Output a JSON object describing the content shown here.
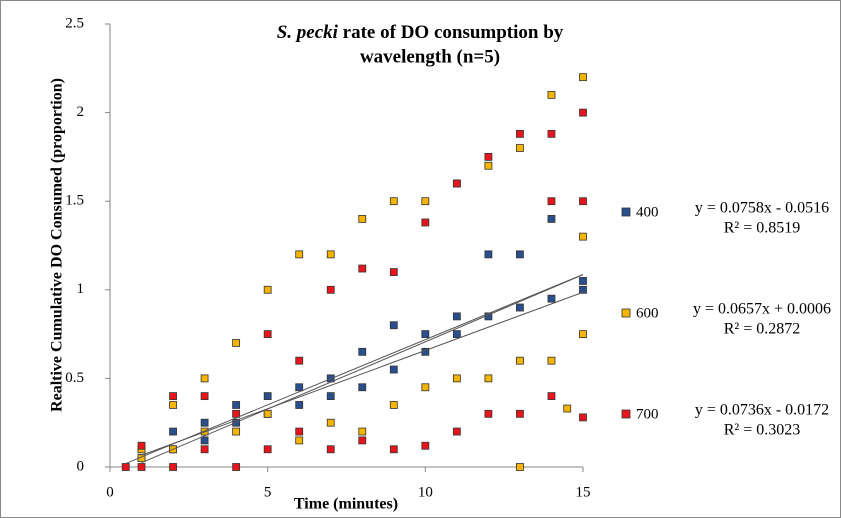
{
  "chart_data": {
    "type": "scatter",
    "title": [
      "S. pecki",
      "rate of DO consumption by",
      "wavelength (n=5)"
    ],
    "x_label": "Time (minutes)",
    "y_label": "Realtive Cumulative DO Consumed (proportion)",
    "xlim": [
      0,
      15
    ],
    "xticks": [
      0,
      5,
      10,
      15
    ],
    "ylim": [
      0,
      2.5
    ],
    "yticks": [
      0,
      0.5,
      1,
      1.5,
      2,
      2.5
    ],
    "grid": false,
    "legend": "right",
    "series": [
      {
        "name": "400",
        "color": "#2a4f8f",
        "x": [
          1,
          1,
          2,
          2,
          3,
          3,
          4,
          4,
          5,
          5,
          6,
          6,
          7,
          7,
          8,
          8,
          9,
          9,
          10,
          10,
          11,
          11,
          12,
          12,
          13,
          13,
          14,
          14,
          15,
          15
        ],
        "values": [
          0.1,
          0.05,
          0.2,
          0.1,
          0.25,
          0.15,
          0.35,
          0.25,
          0.4,
          0.3,
          0.45,
          0.35,
          0.5,
          0.4,
          0.65,
          0.45,
          0.8,
          0.55,
          0.75,
          0.65,
          0.85,
          0.75,
          1.2,
          0.85,
          1.2,
          0.9,
          1.4,
          0.95,
          1.05,
          1.0
        ],
        "trendline": {
          "slope": 0.0758,
          "intercept": -0.0516,
          "equation": "y = 0.0758x - 0.0516",
          "r2": "R² = 0.8519"
        }
      },
      {
        "name": "600",
        "color": "#f5b400",
        "x": [
          1,
          1,
          2,
          2,
          3,
          3,
          4,
          4,
          5,
          5,
          6,
          6,
          7,
          7,
          8,
          8,
          9,
          9,
          10,
          10,
          11,
          11,
          12,
          12,
          13,
          13,
          13,
          14,
          14,
          14.5,
          15,
          15,
          15
        ],
        "values": [
          0.1,
          0.05,
          0.35,
          0.1,
          0.5,
          0.2,
          0.7,
          0.2,
          1.0,
          0.3,
          1.2,
          0.15,
          1.2,
          0.25,
          1.4,
          0.2,
          1.5,
          0.35,
          1.5,
          0.45,
          1.6,
          0.5,
          1.7,
          0.5,
          1.8,
          0.6,
          0,
          2.1,
          0.6,
          0.33,
          2.2,
          0.75,
          1.3
        ],
        "trendline": {
          "slope": 0.0657,
          "intercept": 0.0006,
          "equation": "y = 0.0657x + 0.0006",
          "r2": "R² = 0.2872"
        }
      },
      {
        "name": "700",
        "color": "#e8151c",
        "x": [
          0.5,
          1,
          1,
          2,
          2,
          3,
          3,
          4,
          4,
          5,
          5,
          6,
          6,
          7,
          7,
          8,
          8,
          9,
          9,
          10,
          10,
          11,
          11,
          12,
          12,
          13,
          13,
          14,
          14,
          14,
          15,
          15,
          15
        ],
        "values": [
          0,
          0.12,
          0,
          0.4,
          0,
          0.4,
          0.1,
          0.3,
          0,
          0.75,
          0.1,
          0.6,
          0.2,
          1.0,
          0.1,
          1.12,
          0.15,
          1.1,
          0.1,
          1.38,
          0.12,
          1.6,
          0.2,
          1.75,
          0.3,
          1.88,
          0.3,
          1.88,
          0.4,
          1.5,
          2.0,
          0.28,
          1.5
        ],
        "trendline": {
          "slope": 0.0736,
          "intercept": -0.0172,
          "equation": "y = 0.0736x - 0.0172",
          "r2": "R² = 0.3023"
        }
      }
    ]
  }
}
